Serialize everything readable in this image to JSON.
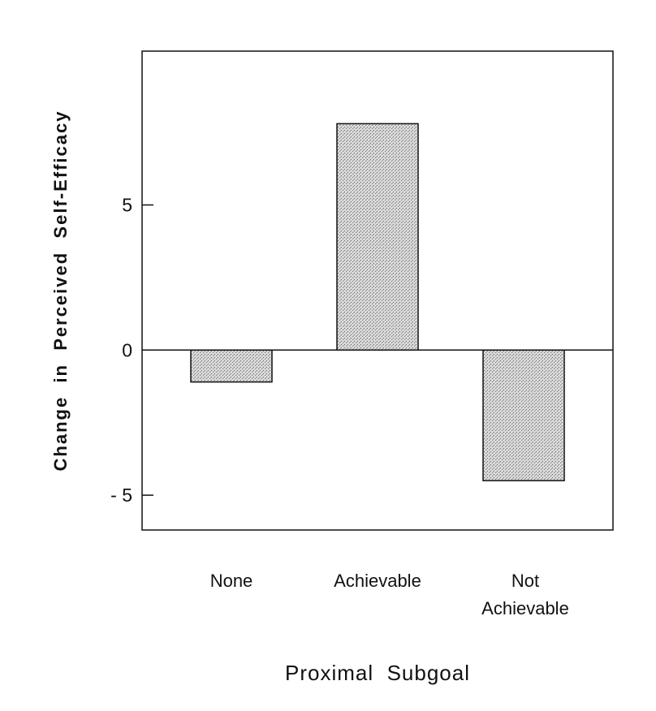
{
  "chart_data": {
    "type": "bar",
    "categories": [
      "None",
      "Achievable",
      "Not Achievable"
    ],
    "category_lines": [
      [
        "None"
      ],
      [
        "Achievable"
      ],
      [
        "Not",
        "Achievable"
      ]
    ],
    "values": [
      -1.1,
      7.8,
      -4.5
    ],
    "xlabel": "Proximal  Subgoal",
    "ylabel": "Change  in  Perceived  Self-Efficacy",
    "ylim": [
      -6.2,
      10.3
    ],
    "yticks": [
      5,
      0,
      -5
    ],
    "ytick_labels": [
      "5",
      "0",
      "- 5"
    ],
    "zero_line": true,
    "grid": false,
    "legend": "none",
    "bar_fill": "#c8c8c8",
    "bar_stroke": "#111111"
  }
}
